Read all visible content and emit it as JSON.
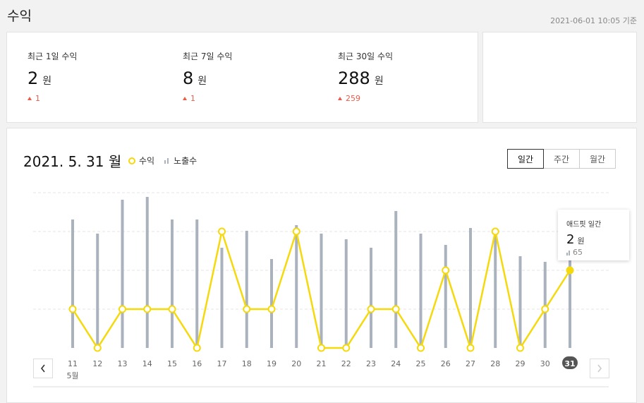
{
  "header": {
    "title": "수익",
    "timestamp": "2021-06-01 10:05 기준"
  },
  "summary": [
    {
      "label": "최근 1일 수익",
      "value": "2",
      "unit": "원",
      "delta": "1"
    },
    {
      "label": "최근 7일 수익",
      "value": "8",
      "unit": "원",
      "delta": "1"
    },
    {
      "label": "최근 30일 수익",
      "value": "288",
      "unit": "원",
      "delta": "259"
    }
  ],
  "chart_header": {
    "date": "2021. 5. 31 월",
    "legend_revenue": "수익",
    "legend_impressions": "노출수"
  },
  "period_tabs": {
    "daily": "일간",
    "weekly": "주간",
    "monthly": "월간",
    "selected": "daily"
  },
  "tooltip": {
    "title": "애드핏 일간",
    "value": "2",
    "unit": "원",
    "impressions": "65"
  },
  "colors": {
    "line": "#f5d90a",
    "bar": "#aab2bd",
    "delta_up": "#ea5b4a",
    "selected_day": "#555555"
  },
  "chart_data": {
    "type": "bar+line",
    "x": [
      "11",
      "12",
      "13",
      "14",
      "15",
      "16",
      "17",
      "18",
      "19",
      "20",
      "21",
      "22",
      "23",
      "24",
      "25",
      "26",
      "27",
      "28",
      "29",
      "30",
      "31"
    ],
    "month_label": "5월",
    "selected_x": "31",
    "series": [
      {
        "name": "노출수",
        "type": "bar",
        "values": [
          91,
          81,
          105,
          107,
          91,
          91,
          71,
          83,
          63,
          87,
          81,
          77,
          71,
          97,
          81,
          73,
          85,
          81,
          65,
          61,
          65
        ]
      },
      {
        "name": "수익",
        "type": "line",
        "values": [
          1,
          0,
          1,
          1,
          1,
          0,
          3,
          1,
          1,
          3,
          0,
          0,
          1,
          1,
          0,
          2,
          0,
          3,
          0,
          1,
          2
        ]
      }
    ],
    "grid": true
  }
}
